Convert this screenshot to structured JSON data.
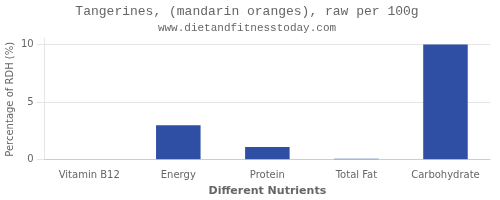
{
  "chart_data": {
    "type": "bar",
    "title": "Tangerines, (mandarin oranges), raw per 100g",
    "subtitle": "www.dietandfitnesstoday.com",
    "xlabel": "Different Nutrients",
    "ylabel": "Percentage of RDH (%)",
    "categories": [
      "Vitamin B12",
      "Energy",
      "Protein",
      "Total Fat",
      "Carbohydrate"
    ],
    "values": [
      0,
      3.0,
      1.1,
      0.1,
      10.0
    ],
    "color": "#2e4fa3",
    "ylim": [
      0,
      10.5
    ],
    "yticks": [
      0,
      5,
      10
    ],
    "grid": true
  }
}
